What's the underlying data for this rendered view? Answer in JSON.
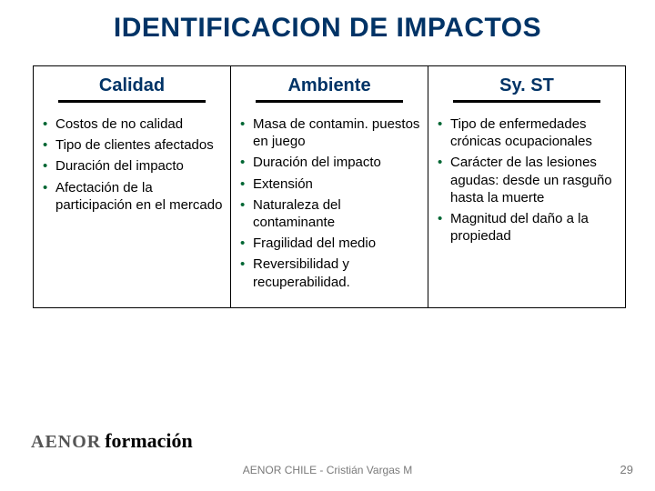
{
  "title": "IDENTIFICACION DE IMPACTOS",
  "title_color": "#003366",
  "bullet_color": "#006633",
  "columns": [
    {
      "header": "Calidad",
      "items": [
        "Costos de no calidad",
        "Tipo de clientes afectados",
        "Duración del impacto",
        "Afectación de la participación en el mercado"
      ]
    },
    {
      "header": "Ambiente",
      "items": [
        "Masa de contamin. puestos en juego",
        "Duración del impacto",
        "Extensión",
        "Naturaleza del contaminante",
        "Fragilidad del medio",
        "Reversibilidad y recuperabilidad."
      ]
    },
    {
      "header": "Sy. ST",
      "items": [
        "Tipo de enfermedades crónicas ocupacionales",
        "Carácter de las lesiones agudas: desde un rasguño hasta la muerte",
        "Magnitud del daño a la propiedad"
      ]
    }
  ],
  "logo": {
    "part1": "AENOR",
    "part2": "formación"
  },
  "footer": "AENOR CHILE - Cristián Vargas M",
  "page_number": "29",
  "border_color": "#000000",
  "background_color": "#ffffff"
}
